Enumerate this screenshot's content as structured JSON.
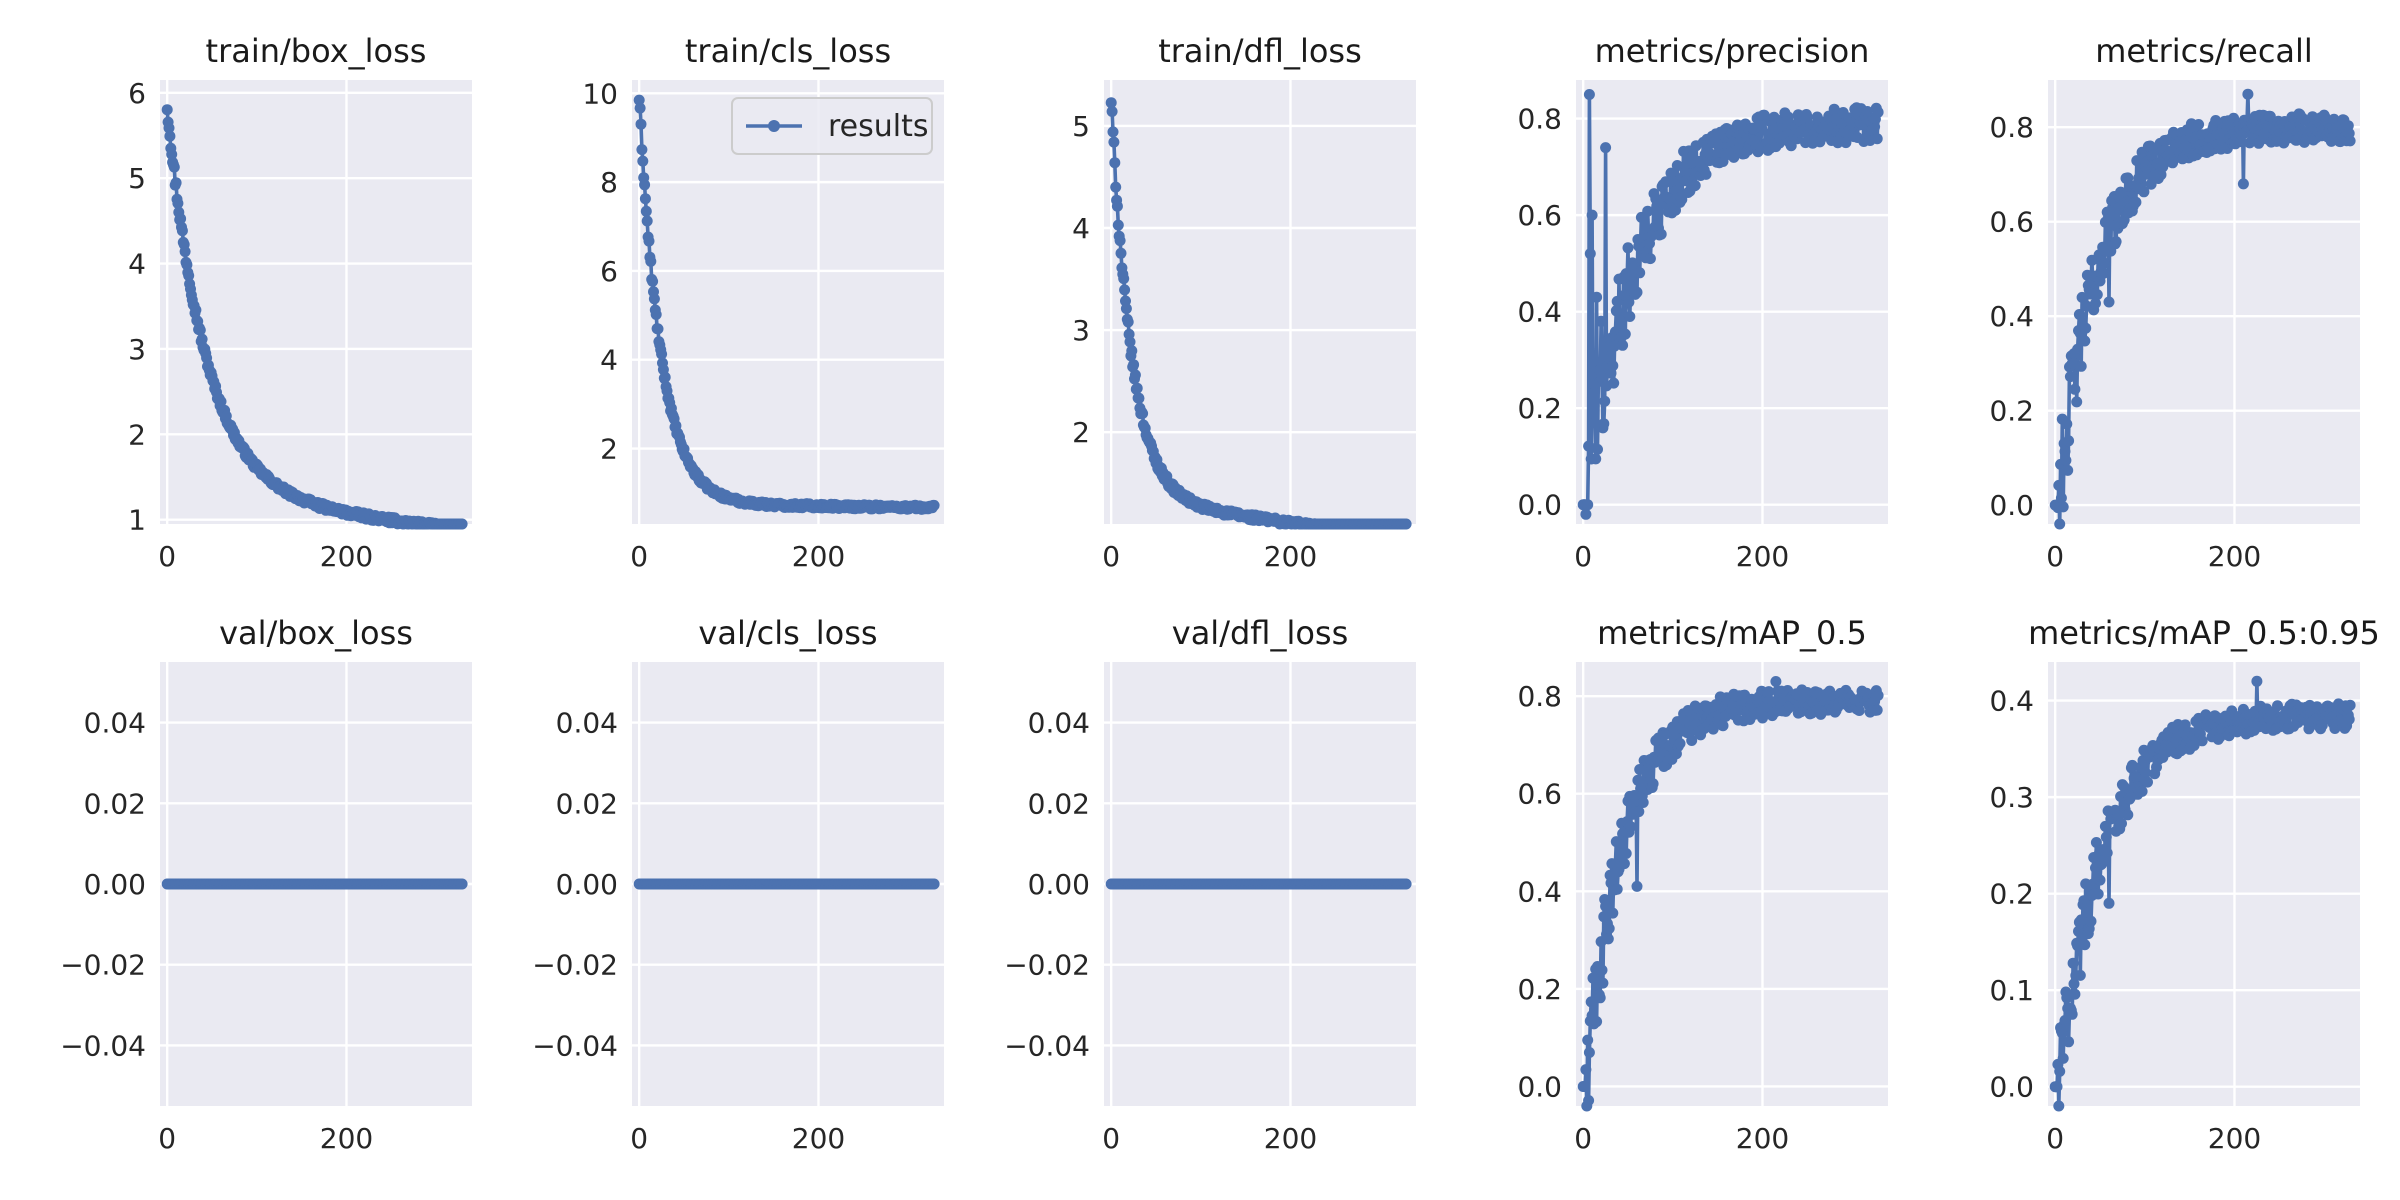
{
  "figure": {
    "background": "#ffffff",
    "axes_bg": "#eaeaf2",
    "grid_color": "#ffffff",
    "series_color": "#4c72b0"
  },
  "chart_data": [
    {
      "type": "line",
      "title": "train/box_loss",
      "xlim": [
        -8,
        340
      ],
      "ylim": [
        0.95,
        6.15
      ],
      "xticks": [
        0,
        200
      ],
      "yticks": [
        1,
        2,
        3,
        4,
        5,
        6
      ],
      "ytick_labels": [
        "1",
        "2",
        "3",
        "4",
        "5",
        "6"
      ],
      "xtick_labels": [
        "0",
        "200"
      ],
      "legend": null,
      "series": [
        {
          "values": {
            "kind": "decay",
            "y0": 5.85,
            "yend": 1.28,
            "tau": 38,
            "k": 0.88,
            "noise": 0.035,
            "n": 330
          }
        }
      ]
    },
    {
      "type": "line",
      "title": "train/cls_loss",
      "xlim": [
        -8,
        340
      ],
      "ylim": [
        0.3,
        10.3
      ],
      "xticks": [
        0,
        200
      ],
      "yticks": [
        2,
        4,
        6,
        8,
        10
      ],
      "ytick_labels": [
        "2",
        "4",
        "6",
        "8",
        "10"
      ],
      "xtick_labels": [
        "0",
        "200"
      ],
      "legend": {
        "label": "results",
        "position": "upper right"
      },
      "series": [
        {
          "name": "results",
          "values": {
            "kind": "decay",
            "y0": 9.9,
            "yend": 0.75,
            "tau": 22,
            "k": 0.9,
            "noise": 0.05,
            "n": 330
          }
        }
      ]
    },
    {
      "type": "line",
      "title": "train/dfl_loss",
      "xlim": [
        -8,
        340
      ],
      "ylim": [
        1.1,
        5.45
      ],
      "xticks": [
        0,
        200
      ],
      "yticks": [
        2,
        3,
        4,
        5
      ],
      "ytick_labels": [
        "2",
        "3",
        "4",
        "5"
      ],
      "xtick_labels": [
        "0",
        "200"
      ],
      "legend": null,
      "series": [
        {
          "values": {
            "kind": "decay",
            "y0": 5.25,
            "yend": 1.35,
            "tau": 20,
            "k": 0.88,
            "noise": 0.03,
            "n": 330
          }
        }
      ]
    },
    {
      "type": "line",
      "title": "metrics/precision",
      "xlim": [
        -8,
        340
      ],
      "ylim": [
        -0.04,
        0.88
      ],
      "xticks": [
        0,
        200
      ],
      "yticks": [
        0.0,
        0.2,
        0.4,
        0.6,
        0.8
      ],
      "ytick_labels": [
        "0.0",
        "0.2",
        "0.4",
        "0.6",
        "0.8"
      ],
      "xtick_labels": [
        "0",
        "200"
      ],
      "legend": null,
      "series": [
        {
          "values": {
            "kind": "rise",
            "yend": 0.79,
            "tau": 55,
            "noise": 0.035,
            "n": 330,
            "start": 0.0,
            "spikes": [
              [
                7,
                0.85
              ],
              [
                4,
                0.0
              ],
              [
                5,
                0.0
              ],
              [
                8,
                0.52
              ],
              [
                10,
                0.6
              ],
              [
                12,
                0.25
              ],
              [
                13,
                0.17
              ],
              [
                15,
                0.43
              ],
              [
                20,
                0.38
              ],
              [
                25,
                0.74
              ],
              [
                60,
                0.44
              ],
              [
                75,
                0.51
              ]
            ]
          }
        }
      ]
    },
    {
      "type": "line",
      "title": "metrics/recall",
      "xlim": [
        -8,
        340
      ],
      "ylim": [
        -0.04,
        0.9
      ],
      "xticks": [
        0,
        200
      ],
      "yticks": [
        0.0,
        0.2,
        0.4,
        0.6,
        0.8
      ],
      "ytick_labels": [
        "0.0",
        "0.2",
        "0.4",
        "0.6",
        "0.8"
      ],
      "xtick_labels": [
        "0",
        "200"
      ],
      "legend": null,
      "series": [
        {
          "values": {
            "kind": "rise",
            "yend": 0.8,
            "tau": 45,
            "noise": 0.03,
            "n": 330,
            "start": 0.0,
            "spikes": [
              [
                60,
                0.43
              ],
              [
                215,
                0.87
              ],
              [
                210,
                0.68
              ]
            ]
          }
        }
      ]
    },
    {
      "type": "line",
      "title": "val/box_loss",
      "xlim": [
        -8,
        340
      ],
      "ylim": [
        -0.055,
        0.055
      ],
      "xticks": [
        0,
        200
      ],
      "yticks": [
        -0.04,
        -0.02,
        0.0,
        0.02,
        0.04
      ],
      "ytick_labels": [
        "−0.04",
        "−0.02",
        "0.00",
        "0.02",
        "0.04"
      ],
      "xtick_labels": [
        "0",
        "200"
      ],
      "legend": null,
      "series": [
        {
          "values": {
            "kind": "const",
            "y": 0.0,
            "n": 330
          }
        }
      ]
    },
    {
      "type": "line",
      "title": "val/cls_loss",
      "xlim": [
        -8,
        340
      ],
      "ylim": [
        -0.055,
        0.055
      ],
      "xticks": [
        0,
        200
      ],
      "yticks": [
        -0.04,
        -0.02,
        0.0,
        0.02,
        0.04
      ],
      "ytick_labels": [
        "−0.04",
        "−0.02",
        "0.00",
        "0.02",
        "0.04"
      ],
      "xtick_labels": [
        "0",
        "200"
      ],
      "legend": null,
      "series": [
        {
          "values": {
            "kind": "const",
            "y": 0.0,
            "n": 330
          }
        }
      ]
    },
    {
      "type": "line",
      "title": "val/dfl_loss",
      "xlim": [
        -8,
        340
      ],
      "ylim": [
        -0.055,
        0.055
      ],
      "xticks": [
        0,
        200
      ],
      "yticks": [
        -0.04,
        -0.02,
        0.0,
        0.02,
        0.04
      ],
      "ytick_labels": [
        "−0.04",
        "−0.02",
        "0.00",
        "0.02",
        "0.04"
      ],
      "xtick_labels": [
        "0",
        "200"
      ],
      "legend": null,
      "series": [
        {
          "values": {
            "kind": "const",
            "y": 0.0,
            "n": 330
          }
        }
      ]
    },
    {
      "type": "line",
      "title": "metrics/mAP_0.5",
      "xlim": [
        -8,
        340
      ],
      "ylim": [
        -0.04,
        0.87
      ],
      "xticks": [
        0,
        200
      ],
      "yticks": [
        0.0,
        0.2,
        0.4,
        0.6,
        0.8
      ],
      "ytick_labels": [
        "0.0",
        "0.2",
        "0.4",
        "0.6",
        "0.8"
      ],
      "xtick_labels": [
        "0",
        "200"
      ],
      "legend": null,
      "series": [
        {
          "values": {
            "kind": "rise",
            "yend": 0.79,
            "tau": 42,
            "noise": 0.025,
            "n": 330,
            "start": 0.0,
            "spikes": [
              [
                60,
                0.41
              ],
              [
                215,
                0.83
              ]
            ]
          }
        }
      ]
    },
    {
      "type": "line",
      "title": "metrics/mAP_0.5:0.95",
      "xlim": [
        -8,
        340
      ],
      "ylim": [
        -0.02,
        0.44
      ],
      "xticks": [
        0,
        200
      ],
      "yticks": [
        0.0,
        0.1,
        0.2,
        0.3,
        0.4
      ],
      "ytick_labels": [
        "0.0",
        "0.1",
        "0.2",
        "0.3",
        "0.4"
      ],
      "xtick_labels": [
        "0",
        "200"
      ],
      "legend": null,
      "series": [
        {
          "values": {
            "kind": "rise",
            "yend": 0.385,
            "tau": 50,
            "noise": 0.013,
            "n": 330,
            "start": 0.0,
            "spikes": [
              [
                60,
                0.19
              ],
              [
                225,
                0.42
              ]
            ]
          }
        }
      ]
    }
  ]
}
